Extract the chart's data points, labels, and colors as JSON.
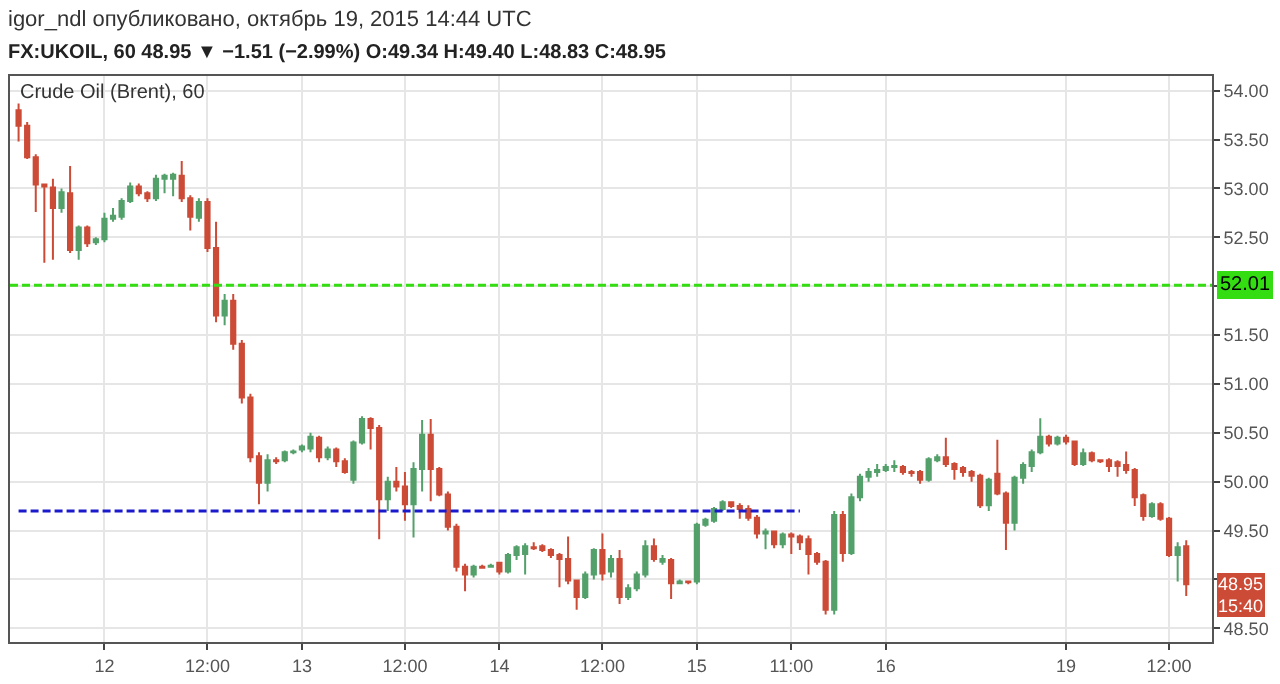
{
  "chart_data": {
    "type": "candlestick",
    "title": "igor_ndl опубликовано, октябрь 19, 2015 14:44 UTC",
    "subtitle": "FX:UKOIL, 60 48.95 ▼ −1.51 (−2.99%) O:49.34 H:49.40 L:48.83 C:48.95",
    "categories": [
      null,
      null,
      null,
      null,
      null,
      null,
      null,
      null,
      null,
      null,
      "12",
      null,
      null,
      null,
      null,
      null,
      null,
      null,
      null,
      null,
      null,
      null,
      "12:00",
      null,
      null,
      null,
      null,
      null,
      null,
      null,
      null,
      null,
      null,
      "13",
      null,
      null,
      null,
      null,
      null,
      null,
      null,
      null,
      null,
      null,
      null,
      "12:00",
      null,
      null,
      null,
      null,
      null,
      null,
      null,
      null,
      null,
      null,
      "14",
      null,
      null,
      null,
      null,
      null,
      null,
      null,
      null,
      null,
      null,
      null,
      "12:00",
      null,
      null,
      null,
      null,
      null,
      null,
      null,
      null,
      null,
      null,
      "15",
      null,
      null,
      null,
      null,
      null,
      null,
      null,
      null,
      null,
      null,
      "11:00",
      null,
      null,
      null,
      null,
      null,
      null,
      null,
      null,
      null,
      null,
      "16",
      null,
      null,
      null,
      null,
      null,
      null,
      null,
      null,
      null,
      null,
      null,
      null,
      null,
      null,
      null,
      null,
      null,
      null,
      null,
      null,
      "19",
      null,
      null,
      null,
      null,
      null,
      null,
      null,
      null,
      null,
      null,
      null,
      "12:00",
      null,
      null
    ],
    "ohlc": [
      [
        53.8,
        53.87,
        53.48,
        53.64
      ],
      [
        53.64,
        53.68,
        53.3,
        53.32
      ],
      [
        53.32,
        53.35,
        52.76,
        53.04
      ],
      [
        53.04,
        53.05,
        52.24,
        53.02
      ],
      [
        53.01,
        53.1,
        52.27,
        52.8
      ],
      [
        52.8,
        53.0,
        52.75,
        52.96
      ],
      [
        52.95,
        53.23,
        52.34,
        52.37
      ],
      [
        52.37,
        52.62,
        52.27,
        52.6
      ],
      [
        52.6,
        52.62,
        52.4,
        52.44
      ],
      [
        52.45,
        52.5,
        52.42,
        52.48
      ],
      [
        52.48,
        52.75,
        52.45,
        52.69
      ],
      [
        52.69,
        52.8,
        52.66,
        52.72
      ],
      [
        52.71,
        52.9,
        52.68,
        52.87
      ],
      [
        52.87,
        53.06,
        52.85,
        53.02
      ],
      [
        53.02,
        53.05,
        52.92,
        52.95
      ],
      [
        52.95,
        52.97,
        52.86,
        52.9
      ],
      [
        52.9,
        53.14,
        52.87,
        53.1
      ],
      [
        53.1,
        53.15,
        52.95,
        53.13
      ],
      [
        53.1,
        53.16,
        52.92,
        53.14
      ],
      [
        53.13,
        53.28,
        52.86,
        52.9
      ],
      [
        52.9,
        52.93,
        52.57,
        52.71
      ],
      [
        52.7,
        52.9,
        52.66,
        52.86
      ],
      [
        52.86,
        52.9,
        52.35,
        52.39
      ],
      [
        52.39,
        52.66,
        51.63,
        51.7
      ],
      [
        51.7,
        51.92,
        51.6,
        51.85
      ],
      [
        51.85,
        51.92,
        51.35,
        51.41
      ],
      [
        51.41,
        51.45,
        50.8,
        50.86
      ],
      [
        50.86,
        50.9,
        50.2,
        50.25
      ],
      [
        50.26,
        50.3,
        49.77,
        49.99
      ],
      [
        49.99,
        50.28,
        49.9,
        50.22
      ],
      [
        50.22,
        50.25,
        50.18,
        50.21
      ],
      [
        50.22,
        50.32,
        50.2,
        50.3
      ],
      [
        50.3,
        50.33,
        50.28,
        50.31
      ],
      [
        50.33,
        50.38,
        50.3,
        50.36
      ],
      [
        50.34,
        50.5,
        50.3,
        50.46
      ],
      [
        50.45,
        50.47,
        50.2,
        50.25
      ],
      [
        50.25,
        50.36,
        50.22,
        50.33
      ],
      [
        50.33,
        50.35,
        50.15,
        50.21
      ],
      [
        50.21,
        50.24,
        50.08,
        50.1
      ],
      [
        50.02,
        50.42,
        49.98,
        50.4
      ],
      [
        50.4,
        50.67,
        50.38,
        50.64
      ],
      [
        50.64,
        50.66,
        50.33,
        50.55
      ],
      [
        50.55,
        50.58,
        49.41,
        49.82
      ],
      [
        49.82,
        50.05,
        49.7,
        50.0
      ],
      [
        50.0,
        50.15,
        49.9,
        49.95
      ],
      [
        49.95,
        50.1,
        49.6,
        49.77
      ],
      [
        49.77,
        50.2,
        49.43,
        50.13
      ],
      [
        50.13,
        50.63,
        49.9,
        50.48
      ],
      [
        50.48,
        50.64,
        49.8,
        50.13
      ],
      [
        50.13,
        50.15,
        49.85,
        49.87
      ],
      [
        49.87,
        49.9,
        49.5,
        49.54
      ],
      [
        49.54,
        49.57,
        49.08,
        49.13
      ],
      [
        49.13,
        49.16,
        48.88,
        49.05
      ],
      [
        49.05,
        49.15,
        49.02,
        49.13
      ],
      [
        49.13,
        49.15,
        49.11,
        49.12
      ],
      [
        49.13,
        49.16,
        49.12,
        49.14
      ],
      [
        49.17,
        49.18,
        49.05,
        49.08
      ],
      [
        49.08,
        49.27,
        49.06,
        49.25
      ],
      [
        49.25,
        49.35,
        49.2,
        49.33
      ],
      [
        49.26,
        49.37,
        49.05,
        49.34
      ],
      [
        49.33,
        49.38,
        49.3,
        49.32
      ],
      [
        49.34,
        49.36,
        49.28,
        49.3
      ],
      [
        49.3,
        49.32,
        49.22,
        49.25
      ],
      [
        49.25,
        49.27,
        48.92,
        49.21
      ],
      [
        49.21,
        49.44,
        48.95,
        48.99
      ],
      [
        48.99,
        49.0,
        48.69,
        48.82
      ],
      [
        48.82,
        49.08,
        48.8,
        49.05
      ],
      [
        49.05,
        49.32,
        49.0,
        49.3
      ],
      [
        49.3,
        49.47,
        48.99,
        49.06
      ],
      [
        49.08,
        49.25,
        49.02,
        49.21
      ],
      [
        49.21,
        49.3,
        48.75,
        48.82
      ],
      [
        48.82,
        48.95,
        48.79,
        48.91
      ],
      [
        48.91,
        49.08,
        48.88,
        49.05
      ],
      [
        49.05,
        49.4,
        49.02,
        49.34
      ],
      [
        49.34,
        49.42,
        49.18,
        49.21
      ],
      [
        49.18,
        49.25,
        49.15,
        49.21
      ],
      [
        49.2,
        49.22,
        48.8,
        48.96
      ],
      [
        48.96,
        49.0,
        48.95,
        48.98
      ],
      [
        48.98,
        48.99,
        48.95,
        48.97
      ],
      [
        48.98,
        49.58,
        48.95,
        49.56
      ],
      [
        49.56,
        49.63,
        49.54,
        49.61
      ],
      [
        49.6,
        49.74,
        49.58,
        49.72
      ],
      [
        49.72,
        49.81,
        49.7,
        49.79
      ],
      [
        49.79,
        49.8,
        49.73,
        49.75
      ],
      [
        49.75,
        49.78,
        49.62,
        49.72
      ],
      [
        49.72,
        49.76,
        49.6,
        49.63
      ],
      [
        49.63,
        49.66,
        49.42,
        49.47
      ],
      [
        49.47,
        49.52,
        49.31,
        49.49
      ],
      [
        49.49,
        49.5,
        49.32,
        49.36
      ],
      [
        49.36,
        49.48,
        49.32,
        49.46
      ],
      [
        49.46,
        49.48,
        49.26,
        49.44
      ],
      [
        49.44,
        49.46,
        49.3,
        49.38
      ],
      [
        49.41,
        49.45,
        49.05,
        49.26
      ],
      [
        49.26,
        49.28,
        49.15,
        49.18
      ],
      [
        49.18,
        49.2,
        48.64,
        48.69
      ],
      [
        48.69,
        49.7,
        48.64,
        49.66
      ],
      [
        49.66,
        49.7,
        49.18,
        49.27
      ],
      [
        49.27,
        49.88,
        49.25,
        49.84
      ],
      [
        49.84,
        50.08,
        49.8,
        50.05
      ],
      [
        50.05,
        50.14,
        50.0,
        50.1
      ],
      [
        50.1,
        50.18,
        50.05,
        50.12
      ],
      [
        50.12,
        50.18,
        50.1,
        50.15
      ],
      [
        50.15,
        50.22,
        50.1,
        50.16
      ],
      [
        50.15,
        50.17,
        50.07,
        50.1
      ],
      [
        50.1,
        50.12,
        50.05,
        50.09
      ],
      [
        50.1,
        50.12,
        49.98,
        50.02
      ],
      [
        50.02,
        50.25,
        50.0,
        50.23
      ],
      [
        50.22,
        50.28,
        50.2,
        50.25
      ],
      [
        50.25,
        50.45,
        50.15,
        50.18
      ],
      [
        50.18,
        50.2,
        50.02,
        50.13
      ],
      [
        50.14,
        50.16,
        50.05,
        50.1
      ],
      [
        50.1,
        50.12,
        50.0,
        50.06
      ],
      [
        50.06,
        50.08,
        49.73,
        49.76
      ],
      [
        49.76,
        50.04,
        49.7,
        50.02
      ],
      [
        50.08,
        50.43,
        49.86,
        49.88
      ],
      [
        49.88,
        49.9,
        49.3,
        49.58
      ],
      [
        49.58,
        50.06,
        49.5,
        50.04
      ],
      [
        50.04,
        50.2,
        49.98,
        50.17
      ],
      [
        50.16,
        50.33,
        50.1,
        50.3
      ],
      [
        50.3,
        50.65,
        50.28,
        50.46
      ],
      [
        50.46,
        50.48,
        50.36,
        50.39
      ],
      [
        50.39,
        50.47,
        50.37,
        50.45
      ],
      [
        50.45,
        50.48,
        50.38,
        50.41
      ],
      [
        50.41,
        50.42,
        50.16,
        50.18
      ],
      [
        50.18,
        50.34,
        50.16,
        50.29
      ],
      [
        50.29,
        50.31,
        50.2,
        50.22
      ],
      [
        50.22,
        50.23,
        50.19,
        50.21
      ],
      [
        50.22,
        50.24,
        50.1,
        50.16
      ],
      [
        50.2,
        50.22,
        50.05,
        50.16
      ],
      [
        50.17,
        50.31,
        50.08,
        50.12
      ],
      [
        50.12,
        50.14,
        49.75,
        49.84
      ],
      [
        49.86,
        49.88,
        49.6,
        49.65
      ],
      [
        49.65,
        49.79,
        49.63,
        49.77
      ],
      [
        49.77,
        49.79,
        49.6,
        49.62
      ],
      [
        49.62,
        49.64,
        49.23,
        49.25
      ],
      [
        49.25,
        49.38,
        48.98,
        49.33
      ],
      [
        49.34,
        49.4,
        48.83,
        48.95
      ]
    ],
    "colors": [
      "#cc4b37",
      "#cc4b37",
      "#cc4b37",
      "#cc4b37",
      "#cc4b37",
      "#53a06a",
      "#cc4b37",
      "#53a06a",
      "#cc4b37",
      "#53a06a",
      "#53a06a",
      "#53a06a",
      "#53a06a",
      "#53a06a",
      "#cc4b37",
      "#cc4b37",
      "#53a06a",
      "#53a06a",
      "#53a06a",
      "#cc4b37",
      "#cc4b37",
      "#53a06a",
      "#cc4b37",
      "#cc4b37",
      "#53a06a",
      "#cc4b37",
      "#cc4b37",
      "#cc4b37",
      "#cc4b37",
      "#53a06a",
      "#cc4b37",
      "#53a06a",
      "#53a06a",
      "#53a06a",
      "#53a06a",
      "#cc4b37",
      "#53a06a",
      "#cc4b37",
      "#cc4b37",
      "#53a06a",
      "#53a06a",
      "#cc4b37",
      "#cc4b37",
      "#53a06a",
      "#cc4b37",
      "#cc4b37",
      "#53a06a",
      "#53a06a",
      "#cc4b37",
      "#cc4b37",
      "#cc4b37",
      "#cc4b37",
      "#cc4b37",
      "#53a06a",
      "#cc4b37",
      "#53a06a",
      "#cc4b37",
      "#53a06a",
      "#53a06a",
      "#53a06a",
      "#cc4b37",
      "#cc4b37",
      "#cc4b37",
      "#cc4b37",
      "#cc4b37",
      "#cc4b37",
      "#53a06a",
      "#53a06a",
      "#cc4b37",
      "#53a06a",
      "#cc4b37",
      "#53a06a",
      "#53a06a",
      "#53a06a",
      "#cc4b37",
      "#53a06a",
      "#cc4b37",
      "#53a06a",
      "#cc4b37",
      "#53a06a",
      "#53a06a",
      "#53a06a",
      "#53a06a",
      "#cc4b37",
      "#cc4b37",
      "#cc4b37",
      "#cc4b37",
      "#53a06a",
      "#cc4b37",
      "#53a06a",
      "#cc4b37",
      "#cc4b37",
      "#cc4b37",
      "#cc4b37",
      "#cc4b37",
      "#53a06a",
      "#cc4b37",
      "#53a06a",
      "#53a06a",
      "#53a06a",
      "#53a06a",
      "#53a06a",
      "#53a06a",
      "#cc4b37",
      "#cc4b37",
      "#cc4b37",
      "#53a06a",
      "#53a06a",
      "#cc4b37",
      "#cc4b37",
      "#cc4b37",
      "#cc4b37",
      "#cc4b37",
      "#53a06a",
      "#cc4b37",
      "#cc4b37",
      "#53a06a",
      "#53a06a",
      "#53a06a",
      "#53a06a",
      "#cc4b37",
      "#53a06a",
      "#cc4b37",
      "#cc4b37",
      "#53a06a",
      "#cc4b37",
      "#cc4b37",
      "#cc4b37",
      "#cc4b37",
      "#cc4b37",
      "#cc4b37",
      "#cc4b37",
      "#53a06a",
      "#cc4b37",
      "#cc4b37",
      "#53a06a",
      "#cc4b37"
    ],
    "series": [
      {
        "type": "line",
        "values": [
          49.7,
          49.7,
          49.7,
          49.7,
          49.7,
          49.7,
          49.7,
          49.7,
          49.7,
          49.7,
          49.7,
          49.7,
          49.7,
          49.7,
          49.7,
          49.7,
          49.7,
          49.7,
          49.7,
          49.7,
          49.7,
          49.7,
          49.7,
          49.7,
          49.7,
          49.7,
          49.7,
          49.7,
          49.7,
          49.7,
          49.7,
          49.7,
          49.7,
          49.7,
          49.7,
          49.7,
          49.7,
          49.7,
          49.7,
          49.7,
          49.7,
          49.7,
          49.7,
          49.7,
          49.7,
          49.7,
          49.7,
          49.7,
          49.7,
          49.7,
          49.7,
          49.7,
          49.7,
          49.7,
          49.7,
          49.7,
          49.7,
          49.7,
          49.7,
          49.7,
          49.7,
          49.7,
          49.7,
          49.7,
          49.7,
          49.7,
          49.7,
          49.7,
          49.7,
          49.7,
          49.7,
          49.7,
          49.7,
          49.7,
          49.7,
          49.7,
          49.7,
          49.7,
          49.7,
          49.7,
          49.7,
          49.7,
          49.7,
          49.7,
          49.7,
          49.7,
          49.7,
          49.7,
          49.7,
          49.7,
          49.7,
          49.7,
          null,
          null,
          null,
          null,
          null,
          null,
          null,
          null,
          null,
          null,
          null,
          null,
          null,
          null,
          null,
          null,
          null,
          null,
          null,
          null,
          null,
          null,
          null,
          null,
          null,
          null,
          null,
          null,
          null,
          null,
          null,
          null,
          null,
          null,
          null,
          null,
          null,
          null,
          null,
          null,
          null,
          null,
          null,
          null,
          null
        ],
        "color": "#1a1acc",
        "line_style": "dashed"
      }
    ],
    "ref_lines": [
      {
        "axis": "y",
        "value": 52.01,
        "label": "52.01",
        "color": "#33dd11",
        "line_style": "dashed"
      }
    ],
    "annotations": [
      "Crude Oil (Brent), 60",
      {
        "text": "48.95",
        "y": 48.95
      },
      "15:40"
    ],
    "ylim": [
      48.36,
      54.15
    ],
    "yticks": [
      {
        "value": 48.5,
        "label": "48.50"
      },
      {
        "value": 49.0,
        "label": null
      },
      {
        "value": 49.5,
        "label": "49.50"
      },
      {
        "value": 50.0,
        "label": "50.00"
      },
      {
        "value": 50.5,
        "label": "50.50"
      },
      {
        "value": 51.0,
        "label": "51.00"
      },
      {
        "value": 51.5,
        "label": "51.50"
      },
      {
        "value": 52.0,
        "label": null
      },
      {
        "value": 52.5,
        "label": "52.50"
      },
      {
        "value": 53.0,
        "label": "53.00"
      },
      {
        "value": 53.5,
        "label": "53.50"
      },
      {
        "value": 54.0,
        "label": "54.00"
      }
    ],
    "grid": true
  }
}
